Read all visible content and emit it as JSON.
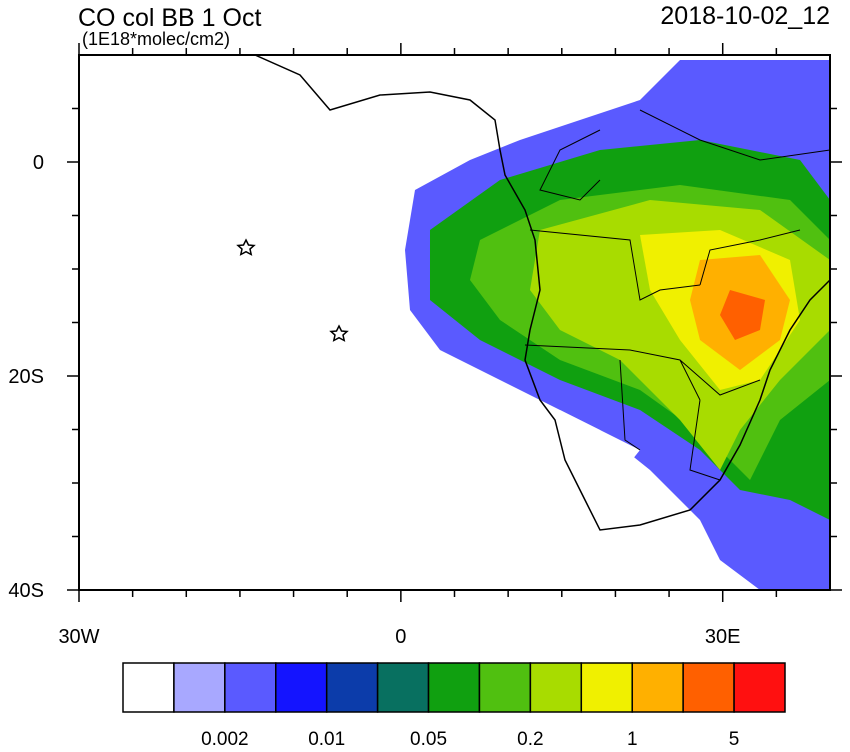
{
  "header": {
    "title": "CO col BB 1 Oct",
    "units": "(1E18*molec/cm2)",
    "valid_time": "2018-10-02_12"
  },
  "map": {
    "lon_range": [
      -30,
      40
    ],
    "lat_range": [
      -40,
      10
    ],
    "lon_ticks": [
      {
        "value": -30,
        "label": "30W"
      },
      0,
      {
        "value": 30,
        "label": "30E"
      }
    ],
    "lat_ticks": [
      0,
      {
        "value": -20,
        "label": "20S"
      },
      {
        "value": -40,
        "label": "40S"
      }
    ],
    "minor_lon_ticks": [
      -25,
      -20,
      -15,
      -10,
      -5,
      5,
      10,
      15,
      20,
      25,
      35
    ],
    "minor_lat_ticks": [
      -35,
      -30,
      -25,
      -15,
      -10,
      -5,
      5
    ]
  },
  "colorbar": {
    "colors": [
      "#ffffff",
      "#a8a8ff",
      "#5a5aff",
      "#1414ff",
      "#0c3caa",
      "#087060",
      "#10a010",
      "#50c010",
      "#a8dc00",
      "#f0f000",
      "#ffb000",
      "#ff6000",
      "#ff1010"
    ],
    "levels": [
      0.002,
      0.01,
      0.05,
      0.2,
      1,
      5
    ]
  }
}
